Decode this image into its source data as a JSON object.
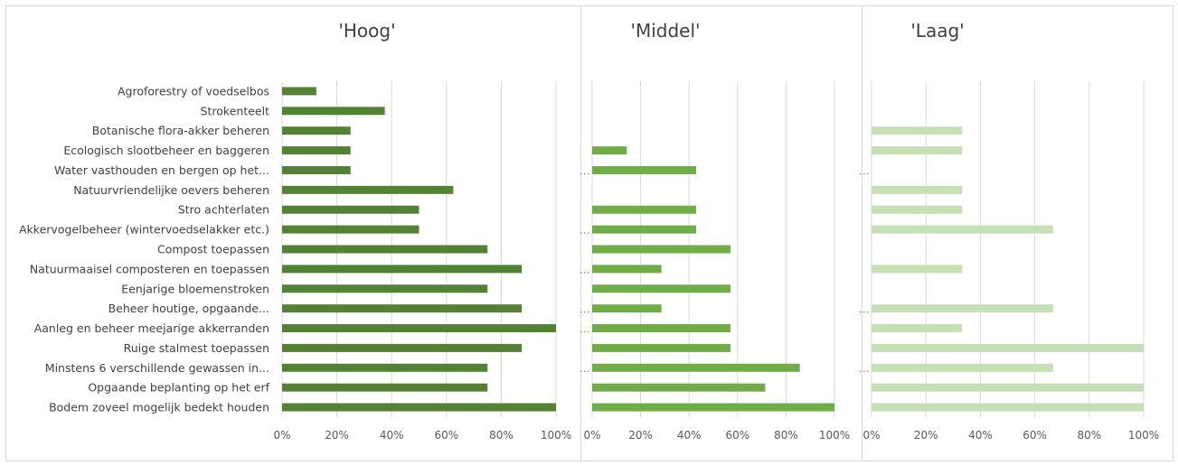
{
  "chart_data": [
    {
      "type": "bar",
      "orientation": "horizontal",
      "title": "'Hoog'",
      "color": "#548235",
      "categories": [
        "Agroforestry of voedselbos",
        "Strokenteelt",
        "Botanische flora-akker beheren",
        "Ecologisch slootbeheer en baggeren",
        "Water vasthouden en bergen op het...",
        "Natuurvriendelijke oevers beheren",
        "Stro achterlaten",
        "Akkervogelbeheer (wintervoedselakker etc.)",
        "Compost toepassen",
        "Natuurmaaisel composteren en toepassen",
        "Eenjarige bloemenstroken",
        "Beheer houtige, opgaande...",
        "Aanleg en beheer meejarige akkerranden",
        "Ruige stalmest toepassen",
        "Minstens 6 verschillende gewassen in...",
        "Opgaande beplanting op het erf",
        "Bodem zoveel mogelijk bedekt houden"
      ],
      "values": [
        0.125,
        0.375,
        0.25,
        0.25,
        0.25,
        0.625,
        0.5,
        0.5,
        0.75,
        0.875,
        0.75,
        0.875,
        1.0,
        0.875,
        0.75,
        0.75,
        1.0
      ],
      "xlim": [
        0,
        1
      ],
      "ticks": [
        "0%",
        "20%",
        "40%",
        "60%",
        "80%",
        "100%"
      ],
      "grid": true
    },
    {
      "type": "bar",
      "orientation": "horizontal",
      "title": "'Middel'",
      "color": "#70ad47",
      "values": [
        0,
        0,
        0,
        0.143,
        0.429,
        0,
        0.429,
        0.429,
        0.571,
        0.286,
        0.571,
        0.286,
        0.571,
        0.571,
        0.857,
        0.714,
        1.0
      ],
      "xlim": [
        0,
        1
      ],
      "ticks": [
        "0%",
        "20%",
        "40%",
        "60%",
        "80%",
        "100%"
      ],
      "grid": true
    },
    {
      "type": "bar",
      "orientation": "horizontal",
      "title": "'Laag'",
      "color": "#c5e0b4",
      "values": [
        0,
        0,
        0.333,
        0.333,
        0,
        0.333,
        0.333,
        0.667,
        0,
        0.333,
        0,
        0.667,
        0.333,
        1.0,
        0.667,
        1.0,
        1.0
      ],
      "xlim": [
        0,
        1
      ],
      "ticks": [
        "0%",
        "20%",
        "40%",
        "60%",
        "80%",
        "100%"
      ],
      "grid": true
    }
  ]
}
